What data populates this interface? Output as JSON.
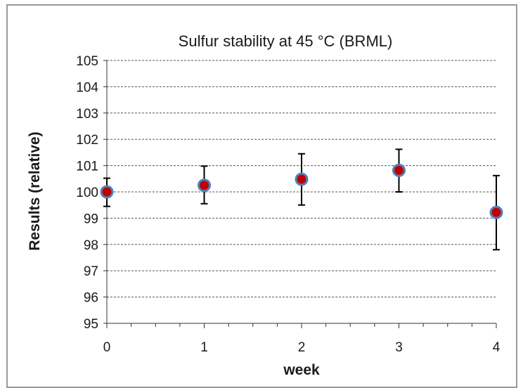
{
  "chart_data": {
    "type": "scatter",
    "title": "Sulfur stability at 45 °C (BRML)",
    "xlabel": "week",
    "ylabel": "Results (relative)",
    "xlim": [
      0,
      4
    ],
    "ylim": [
      95,
      105
    ],
    "x_ticks": [
      "0",
      "1",
      "2",
      "3",
      "4"
    ],
    "y_ticks": [
      "95",
      "96",
      "97",
      "98",
      "99",
      "100",
      "101",
      "102",
      "103",
      "104",
      "105"
    ],
    "grid": true,
    "series": [
      {
        "x": [
          0,
          1,
          2,
          3,
          4
        ],
        "values": [
          100.0,
          100.25,
          100.48,
          100.82,
          99.22
        ],
        "error_low": [
          99.45,
          99.55,
          99.5,
          100.0,
          97.8
        ],
        "error_high": [
          100.52,
          100.98,
          101.45,
          101.62,
          100.62
        ]
      }
    ],
    "marker_fill": "#c00000",
    "marker_edge": "#4f81bd",
    "gridline_color": "#555555",
    "frame_color": "#9a9a9a"
  }
}
